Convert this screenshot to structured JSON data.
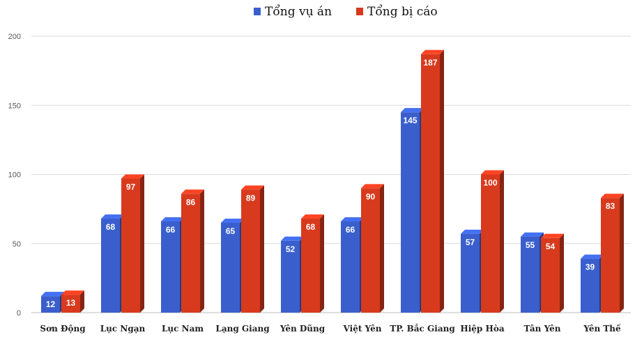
{
  "chart_data": {
    "type": "bar",
    "categories": [
      "Sơn Động",
      "Lục Ngạn",
      "Lục Nam",
      "Lạng Giang",
      "Yên Dũng",
      "Việt Yên",
      "TP. Bắc Giang",
      "Hiệp Hòa",
      "Tân Yên",
      "Yên Thế"
    ],
    "series": [
      {
        "name": "Tổng vụ án",
        "color": "#3a5fcd",
        "values": [
          12,
          68,
          66,
          65,
          52,
          66,
          145,
          57,
          55,
          39
        ]
      },
      {
        "name": "Tổng bị cáo",
        "color": "#d83a1e",
        "values": [
          13,
          97,
          86,
          89,
          68,
          90,
          187,
          100,
          54,
          83
        ]
      }
    ],
    "yticks": [
      "0",
      "50",
      "100",
      "150",
      "200"
    ],
    "ylim": [
      0,
      200
    ],
    "grid": true,
    "legend": "top-center",
    "bar_style": "3d"
  }
}
